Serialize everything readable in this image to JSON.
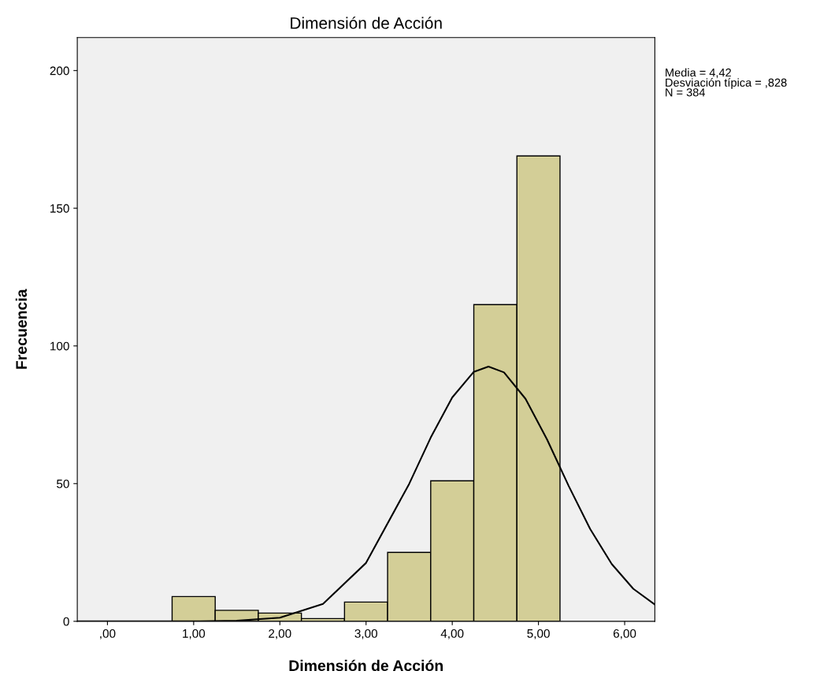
{
  "chart_data": {
    "type": "histogram",
    "title": "Dimensión de Acción",
    "xlabel": "Dimensión de Acción",
    "ylabel": "Frecuencia",
    "bins": [
      0.75,
      1.25,
      1.75,
      2.25,
      2.75,
      3.25,
      3.75,
      4.25,
      4.75,
      5.25
    ],
    "values": [
      9,
      4,
      3,
      1,
      7,
      25,
      51,
      115,
      169
    ],
    "color": "#d3ce97",
    "series": [
      {
        "type": "line",
        "color": "#000000",
        "x": [
          -0.35,
          1.0,
          1.5,
          2.0,
          2.5,
          3.0,
          3.5,
          3.75,
          4.0,
          4.25,
          4.42,
          4.6,
          4.85,
          5.1,
          5.35,
          5.6,
          5.85,
          6.1,
          6.35
        ],
        "values": [
          0,
          0,
          0.2,
          1.3,
          6.3,
          21.2,
          49.9,
          66.7,
          81.3,
          90.6,
          92.5,
          90.4,
          80.8,
          66.0,
          49.2,
          33.5,
          20.8,
          11.8,
          6.1
        ]
      }
    ],
    "xlim": [
      -0.35,
      6.35
    ],
    "ylim": [
      0,
      212
    ],
    "xticks": [
      {
        "value": 0,
        "label": ",00"
      },
      {
        "value": 1,
        "label": "1,00"
      },
      {
        "value": 2,
        "label": "2,00"
      },
      {
        "value": 3,
        "label": "3,00"
      },
      {
        "value": 4,
        "label": "4,00"
      },
      {
        "value": 5,
        "label": "5,00"
      },
      {
        "value": 6,
        "label": "6,00"
      }
    ],
    "yticks": [
      0,
      50,
      100,
      150,
      200
    ],
    "grid": false,
    "annotations": [
      "Media = 4,42",
      "Desviación típica = ,828",
      "N = 384"
    ]
  }
}
